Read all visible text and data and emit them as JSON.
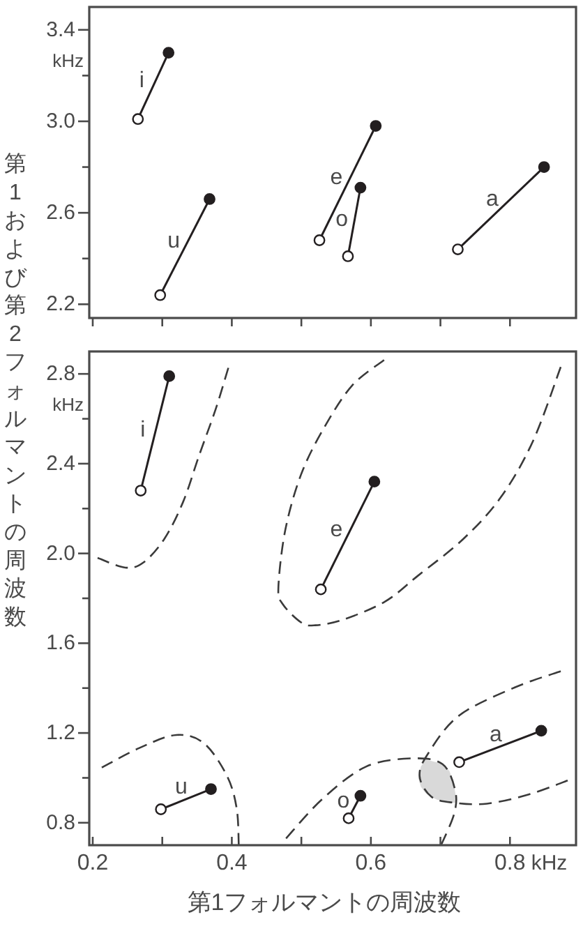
{
  "chart_data": [
    {
      "type": "line",
      "xlim": [
        0.195,
        0.895
      ],
      "ylim": [
        2.14,
        3.5
      ],
      "tick_labels": "y",
      "marker": "circle",
      "ylabel": "第1および第2フォルマントの周波数",
      "annotations": [
        "kHz"
      ],
      "xticks": [
        0.2,
        {
          "value": 0.3,
          "label": null
        },
        0.4,
        {
          "value": 0.5,
          "label": null
        },
        0.6,
        {
          "value": 0.7,
          "label": null
        },
        0.8
      ],
      "yticks": [
        2.2,
        {
          "value": 2.4,
          "label": null
        },
        2.6,
        {
          "value": 2.8,
          "label": null
        },
        {
          "value": 3.0,
          "label": "3.0"
        },
        {
          "value": 3.2,
          "label": null
        },
        3.4
      ],
      "series": [
        {
          "name": "i",
          "color": "#231f20",
          "colors": [
            "#ffffff",
            "#231f20"
          ],
          "x": [
            0.265,
            0.309
          ],
          "values": [
            3.01,
            3.3
          ]
        },
        {
          "name": "u",
          "color": "#231f20",
          "colors": [
            "#ffffff",
            "#231f20"
          ],
          "x": [
            0.297,
            0.368
          ],
          "values": [
            2.24,
            2.66
          ]
        },
        {
          "name": "e",
          "color": "#231f20",
          "colors": [
            "#ffffff",
            "#231f20"
          ],
          "x": [
            0.526,
            0.607
          ],
          "values": [
            2.48,
            2.98
          ]
        },
        {
          "name": "o",
          "color": "#231f20",
          "colors": [
            "#ffffff",
            "#231f20"
          ],
          "x": [
            0.567,
            0.585
          ],
          "values": [
            2.41,
            2.71
          ]
        },
        {
          "name": "a",
          "color": "#231f20",
          "colors": [
            "#ffffff",
            "#231f20"
          ],
          "x": [
            0.725,
            0.849
          ],
          "values": [
            2.44,
            2.8
          ]
        }
      ]
    },
    {
      "type": "line",
      "xlim": [
        0.195,
        0.895
      ],
      "ylim": [
        0.7,
        2.9
      ],
      "xlabel": "第1フォルマントの周波数",
      "annotations": [
        "kHz",
        "kHz"
      ],
      "xticks": [
        0.2,
        {
          "value": 0.3,
          "label": null
        },
        0.4,
        {
          "value": 0.5,
          "label": null
        },
        0.6,
        {
          "value": 0.7,
          "label": null
        },
        0.8
      ],
      "yticks": [
        0.8,
        {
          "value": 1.0,
          "label": null
        },
        1.2,
        {
          "value": 1.4,
          "label": null
        },
        1.6,
        {
          "value": 1.8,
          "label": null
        },
        {
          "value": 2.0,
          "label": "2.0"
        },
        {
          "value": 2.2,
          "label": null
        },
        2.4,
        {
          "value": 2.6,
          "label": null
        },
        2.8
      ],
      "series": [
        {
          "color": "#d9d9d9",
          "x": [
            0.668,
            0.672,
            0.678,
            0.685,
            0.695,
            0.705,
            0.713,
            0.719,
            0.722
          ],
          "values": [
            null,
            null,
            null,
            null,
            null,
            null,
            null,
            null,
            null
          ],
          "upper": [
            1.0,
            1.05,
            1.08,
            1.077,
            1.069,
            1.058,
            1.03,
            0.98,
            0.92
          ],
          "lower": [
            1.0,
            0.96,
            0.935,
            0.918,
            0.903,
            0.895,
            0.891,
            0.889,
            0.89
          ]
        },
        {
          "color": "#3a3a3a",
          "line_style": "dashed",
          "x": [
            0.207,
            0.247,
            0.273,
            0.303,
            0.33,
            0.353,
            0.377,
            0.395
          ],
          "values": [
            1.98,
            1.937,
            1.96,
            2.065,
            2.23,
            2.437,
            2.645,
            2.827
          ]
        },
        {
          "color": "#3a3a3a",
          "line_style": "dashed",
          "x": [
            0.619,
            0.573,
            0.533,
            0.5,
            0.477,
            0.467,
            0.473,
            0.5,
            0.52,
            0.56,
            0.62,
            0.667,
            0.733,
            0.787,
            0.833,
            0.873
          ],
          "values": [
            2.862,
            2.748,
            2.562,
            2.355,
            2.106,
            1.85,
            1.775,
            1.692,
            1.68,
            1.705,
            1.785,
            1.899,
            2.065,
            2.251,
            2.5,
            2.831
          ]
        },
        {
          "color": "#3a3a3a",
          "line_style": "dashed",
          "x": [
            0.213,
            0.267,
            0.32,
            0.36,
            0.393,
            0.407,
            0.41
          ],
          "values": [
            1.046,
            1.133,
            1.191,
            1.154,
            1.009,
            0.864,
            0.7
          ]
        },
        {
          "color": "#3a3a3a",
          "line_style": "dashed",
          "x": [
            0.478,
            0.53,
            0.593,
            0.66,
            0.703,
            0.721,
            0.72,
            0.701
          ],
          "values": [
            0.73,
            0.905,
            1.05,
            1.087,
            1.061,
            0.947,
            0.843,
            0.7
          ]
        },
        {
          "color": "#3a3a3a",
          "line_style": "dashed",
          "x": [
            0.873,
            0.807,
            0.727,
            0.683,
            0.67,
            0.687,
            0.72,
            0.767,
            0.827,
            0.883
          ],
          "values": [
            1.475,
            1.403,
            1.278,
            1.112,
            1.009,
            0.916,
            0.889,
            0.885,
            0.926,
            0.988
          ]
        },
        {
          "name": "i",
          "marker": "circle",
          "color": "#231f20",
          "colors": [
            "#ffffff",
            "#231f20"
          ],
          "x": [
            0.269,
            0.31
          ],
          "values": [
            2.28,
            2.79
          ]
        },
        {
          "name": "u",
          "marker": "circle",
          "color": "#231f20",
          "colors": [
            "#ffffff",
            "#231f20"
          ],
          "x": [
            0.298,
            0.37
          ],
          "values": [
            0.86,
            0.95
          ]
        },
        {
          "name": "e",
          "marker": "circle",
          "color": "#231f20",
          "colors": [
            "#ffffff",
            "#231f20"
          ],
          "x": [
            0.528,
            0.605
          ],
          "values": [
            1.84,
            2.32
          ]
        },
        {
          "name": "o",
          "marker": "circle",
          "color": "#231f20",
          "colors": [
            "#ffffff",
            "#231f20"
          ],
          "x": [
            0.568,
            0.585
          ],
          "values": [
            0.82,
            0.92
          ]
        },
        {
          "name": "a",
          "marker": "circle",
          "color": "#231f20",
          "colors": [
            "#ffffff",
            "#231f20"
          ],
          "x": [
            0.727,
            0.845
          ],
          "values": [
            1.07,
            1.21
          ]
        }
      ]
    }
  ]
}
